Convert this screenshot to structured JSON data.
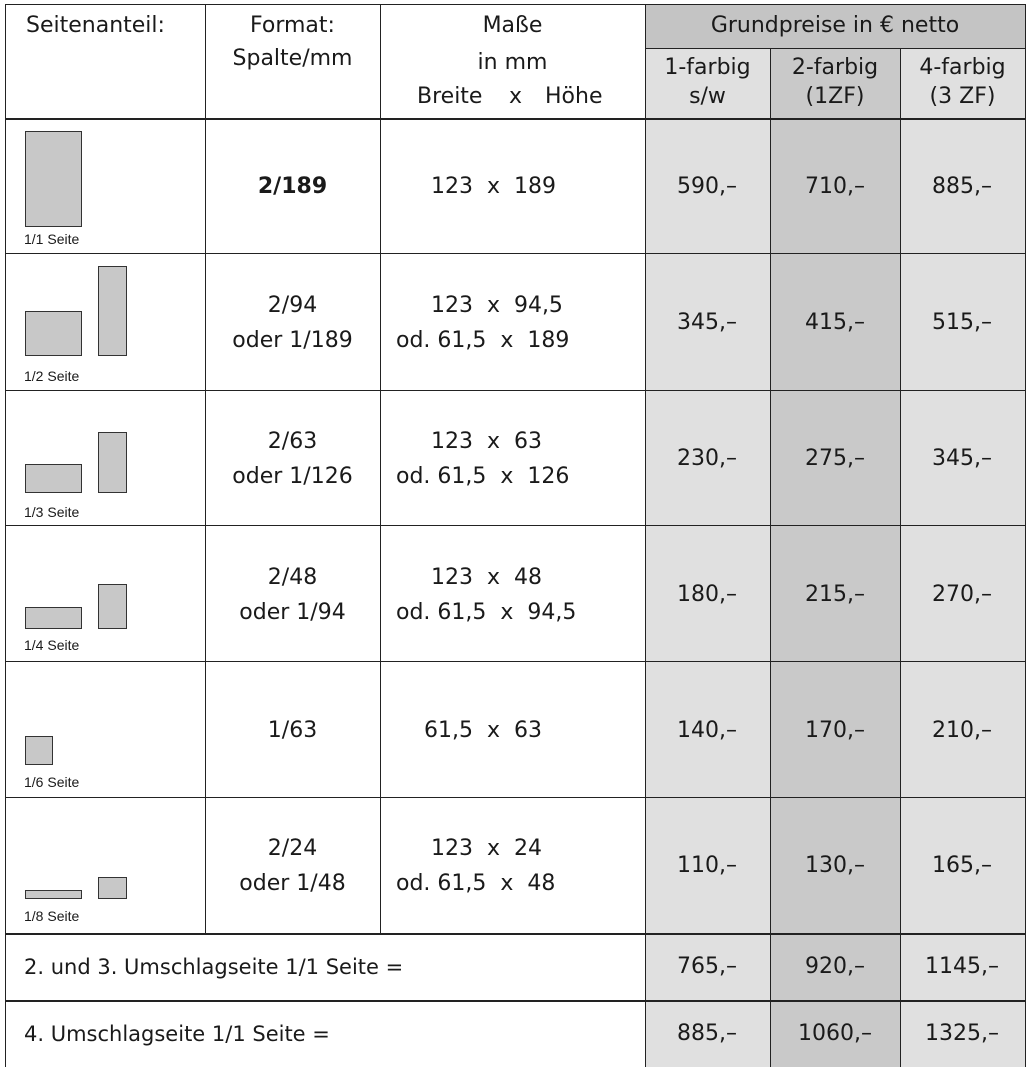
{
  "header": {
    "seitenanteil": "Seitenanteil:",
    "format_line1": "Format:",
    "format_line2": "Spalte/mm",
    "masse_line1": "Maße",
    "masse_line2": "in mm",
    "breite": "Breite",
    "x": "x",
    "hoehe": "Höhe",
    "grundpreise": "Grundpreise in € netto",
    "col1_line1": "1-farbig",
    "col1_line2": "s/w",
    "col2_line1": "2-farbig",
    "col2_line2": "(1ZF)",
    "col3_line1": "4-farbig",
    "col3_line2": "(3 ZF)"
  },
  "rows": [
    {
      "label": "1/1 Seite",
      "format1": "2/189",
      "format2": "",
      "dim1": "     123  x  189",
      "dim2": "",
      "p1": "590,–",
      "p2": "710,–",
      "p3": "885,–"
    },
    {
      "label": "1/2 Seite",
      "format1": "2/94",
      "format2": "oder 1/189",
      "dim1": "     123  x  94,5",
      "dim2": "od. 61,5  x  189",
      "p1": "345,–",
      "p2": "415,–",
      "p3": "515,–"
    },
    {
      "label": "1/3 Seite",
      "format1": "2/63",
      "format2": "oder 1/126",
      "dim1": "     123  x  63",
      "dim2": "od. 61,5  x  126",
      "p1": "230,–",
      "p2": "275,–",
      "p3": "345,–"
    },
    {
      "label": "1/4 Seite",
      "format1": "2/48",
      "format2": "oder 1/94",
      "dim1": "     123  x  48",
      "dim2": "od. 61,5  x  94,5",
      "p1": "180,–",
      "p2": "215,–",
      "p3": "270,–"
    },
    {
      "label": "1/6 Seite",
      "format1": "1/63",
      "format2": "",
      "dim1": "    61,5  x  63",
      "dim2": "",
      "p1": "140,–",
      "p2": "170,–",
      "p3": "210,–"
    },
    {
      "label": "1/8 Seite",
      "format1": "2/24",
      "format2": "oder 1/48",
      "dim1": "     123  x  24",
      "dim2": "od. 61,5  x  48",
      "p1": "110,–",
      "p2": "130,–",
      "p3": "165,–"
    }
  ],
  "footer": [
    {
      "label": "2. und 3. Umschlagseite 1/1 Seite =",
      "p1": "765,–",
      "p2": "920,–",
      "p3": "1145,–"
    },
    {
      "label": "4. Umschlagseite 1/1 Seite =",
      "p1": "885,–",
      "p2": "1060,–",
      "p3": "1325,–"
    }
  ]
}
